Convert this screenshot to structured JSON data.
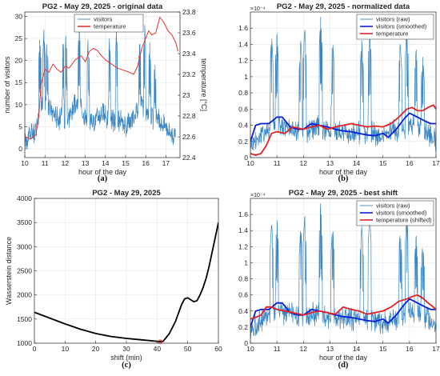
{
  "chart_data": [
    {
      "panel": "a",
      "type": "line",
      "caption": "(a)",
      "title": "PG2 - May 29, 2025 - original data",
      "xlabel": "hour of the day",
      "ylabel": "number of visitors",
      "ylabel_right": "temperature [°C]",
      "xlim": [
        10,
        17.7
      ],
      "ylim": [
        -2,
        31
      ],
      "ylim_right": [
        22.4,
        23.8
      ],
      "xticks": [
        10,
        11,
        12,
        13,
        14,
        15,
        16,
        17
      ],
      "yticks": [
        0,
        5,
        10,
        15,
        20,
        25,
        30
      ],
      "yticks_right": [
        22.4,
        22.6,
        22.8,
        23,
        23.2,
        23.4,
        23.6,
        23.8
      ],
      "ytick_labels_right": [
        "22.4",
        "22.6",
        "22.8",
        "23",
        "23.2",
        "23.4",
        "23.6",
        "23.8"
      ],
      "legend": [
        "visitors",
        "temperature"
      ],
      "legend_position": "top-center",
      "grid": true,
      "series": [
        {
          "name": "visitors",
          "color": "#3a86c4",
          "axis": "left",
          "style": "noisy",
          "x": [
            10.0,
            10.5,
            10.7,
            11.0,
            11.4,
            11.6,
            12.0,
            12.3,
            12.6,
            13.0,
            13.4,
            13.8,
            14.0,
            14.5,
            15.0,
            15.5,
            15.8,
            16.2,
            16.6,
            17.0,
            17.5
          ],
          "y": [
            2,
            4,
            8,
            10,
            8,
            7,
            6,
            8,
            10,
            7,
            6,
            8,
            7,
            6,
            5,
            8,
            10,
            7,
            6,
            5,
            2
          ],
          "peaks": [
            [
              10.75,
              26
            ],
            [
              10.95,
              27
            ],
            [
              11.1,
              25
            ],
            [
              11.9,
              25
            ],
            [
              12.05,
              27
            ],
            [
              12.7,
              29
            ],
            [
              13.15,
              26
            ],
            [
              14.2,
              25
            ],
            [
              14.55,
              27
            ],
            [
              15.7,
              25
            ],
            [
              15.95,
              28
            ],
            [
              16.2,
              24
            ],
            [
              16.45,
              20
            ]
          ]
        },
        {
          "name": "temperature",
          "color": "#e8322c",
          "axis": "right",
          "x": [
            10.0,
            10.3,
            10.55,
            10.7,
            10.8,
            11.0,
            11.2,
            11.4,
            11.6,
            11.8,
            12.0,
            12.2,
            12.5,
            12.8,
            13.0,
            13.2,
            13.4,
            13.6,
            13.8,
            14.0,
            14.3,
            14.6,
            14.9,
            15.2,
            15.4,
            15.6,
            15.8,
            16.0,
            16.15,
            16.3,
            16.5,
            16.7,
            16.9,
            17.1,
            17.3,
            17.5,
            17.6
          ],
          "y": [
            22.6,
            22.58,
            22.62,
            22.8,
            23.1,
            23.25,
            23.22,
            23.3,
            23.25,
            23.22,
            23.28,
            23.26,
            23.34,
            23.38,
            23.32,
            23.42,
            23.45,
            23.43,
            23.38,
            23.34,
            23.3,
            23.26,
            23.24,
            23.22,
            23.2,
            23.28,
            23.45,
            23.55,
            23.62,
            23.58,
            23.6,
            23.75,
            23.7,
            23.62,
            23.58,
            23.5,
            23.42
          ]
        }
      ]
    },
    {
      "panel": "b",
      "type": "line",
      "caption": "(b)",
      "title": "PG2 - May 29, 2025 - normalized data",
      "xlabel": "hour of the day",
      "ylabel": "",
      "xlim": [
        10,
        17
      ],
      "ylim": [
        0,
        1.8
      ],
      "exponent_label": "×10⁻⁴",
      "xticks": [
        10,
        11,
        12,
        13,
        14,
        15,
        16,
        17
      ],
      "yticks": [
        0,
        0.2,
        0.4,
        0.6,
        0.8,
        1,
        1.2,
        1.4,
        1.6
      ],
      "ytick_labels": [
        "0",
        "0.2",
        "0.4",
        "0.6",
        "0.8",
        "1",
        "1.2",
        "1.4",
        "1.6"
      ],
      "legend": [
        "visitors (raw)",
        "visitors (smoothed)",
        "temperature"
      ],
      "legend_position": "top-right",
      "grid": true,
      "series": [
        {
          "name": "visitors (raw)",
          "color": "#3a86c4",
          "style": "noisy",
          "x": [
            10.0,
            10.5,
            11.0,
            11.5,
            12.0,
            12.5,
            13.0,
            13.5,
            14.0,
            14.5,
            15.0,
            15.5,
            16.0,
            16.5,
            17.0
          ],
          "y": [
            0.15,
            0.3,
            0.4,
            0.35,
            0.3,
            0.35,
            0.3,
            0.3,
            0.3,
            0.28,
            0.25,
            0.3,
            0.4,
            0.35,
            0.2
          ],
          "peaks": [
            [
              10.8,
              1.5
            ],
            [
              11.0,
              1.55
            ],
            [
              11.9,
              1.45
            ],
            [
              12.05,
              1.6
            ],
            [
              12.65,
              1.75
            ],
            [
              13.1,
              1.48
            ],
            [
              14.2,
              1.45
            ],
            [
              14.5,
              1.6
            ],
            [
              15.65,
              1.42
            ],
            [
              15.9,
              1.62
            ],
            [
              16.25,
              1.35
            ],
            [
              16.5,
              1.25
            ]
          ]
        },
        {
          "name": "visitors (smoothed)",
          "color": "#0a1edc",
          "x": [
            10.0,
            10.2,
            10.4,
            10.7,
            11.0,
            11.2,
            11.5,
            11.8,
            12.0,
            12.3,
            12.6,
            12.9,
            13.2,
            13.5,
            13.8,
            14.1,
            14.4,
            14.7,
            15.0,
            15.2,
            15.5,
            15.8,
            16.0,
            16.3,
            16.6,
            16.8,
            17.0
          ],
          "y": [
            0.2,
            0.4,
            0.42,
            0.42,
            0.5,
            0.5,
            0.38,
            0.35,
            0.35,
            0.42,
            0.4,
            0.38,
            0.35,
            0.33,
            0.32,
            0.3,
            0.28,
            0.27,
            0.3,
            0.25,
            0.35,
            0.48,
            0.55,
            0.5,
            0.45,
            0.42,
            0.42
          ]
        },
        {
          "name": "temperature",
          "color": "#e52020",
          "x": [
            10.0,
            10.2,
            10.4,
            10.6,
            10.8,
            11.0,
            11.3,
            11.6,
            12.0,
            12.3,
            12.6,
            12.9,
            13.2,
            13.5,
            13.8,
            14.1,
            14.4,
            14.7,
            15.0,
            15.3,
            15.6,
            15.9,
            16.1,
            16.3,
            16.5,
            16.7,
            16.9,
            17.0
          ],
          "y": [
            0.05,
            0.03,
            0.05,
            0.15,
            0.3,
            0.32,
            0.3,
            0.38,
            0.35,
            0.38,
            0.4,
            0.35,
            0.38,
            0.4,
            0.42,
            0.4,
            0.38,
            0.39,
            0.38,
            0.42,
            0.5,
            0.6,
            0.62,
            0.58,
            0.58,
            0.62,
            0.65,
            0.6
          ]
        }
      ]
    },
    {
      "panel": "c",
      "type": "line",
      "caption": "(c)",
      "title": "PG2 - May 29, 2025",
      "xlabel": "shift (min)",
      "ylabel": "Wasserstein distance",
      "xlim": [
        0,
        60
      ],
      "ylim": [
        1000,
        4000
      ],
      "xticks": [
        0,
        10,
        20,
        30,
        40,
        50,
        60
      ],
      "yticks": [
        1000,
        1500,
        2000,
        2500,
        3000,
        3500,
        4000
      ],
      "grid": true,
      "series": [
        {
          "name": "distance",
          "color": "#000000",
          "x": [
            0,
            5,
            10,
            15,
            20,
            25,
            30,
            35,
            40,
            41,
            42,
            44,
            46,
            48,
            49,
            50,
            51,
            52,
            53,
            54,
            55,
            56,
            57,
            58,
            59,
            60
          ],
          "y": [
            1640,
            1520,
            1400,
            1290,
            1200,
            1140,
            1100,
            1070,
            1040,
            1030,
            1040,
            1200,
            1450,
            1800,
            1920,
            1940,
            1900,
            1860,
            1880,
            2000,
            2150,
            2350,
            2600,
            2900,
            3200,
            3500
          ]
        },
        {
          "name": "minimum",
          "color": "#e52020",
          "marker": true,
          "x": [
            41
          ],
          "y": [
            1030
          ]
        }
      ]
    },
    {
      "panel": "d",
      "type": "line",
      "caption": "(d)",
      "title": "PG2 - May 29, 2025 - best shift",
      "xlabel": "hour of the day",
      "ylabel": "",
      "xlim": [
        10,
        17
      ],
      "ylim": [
        0,
        1.8
      ],
      "exponent_label": "×10⁻⁴",
      "xticks": [
        10,
        11,
        12,
        13,
        14,
        15,
        16,
        17
      ],
      "yticks": [
        0,
        0.2,
        0.4,
        0.6,
        0.8,
        1,
        1.2,
        1.4,
        1.6
      ],
      "ytick_labels": [
        "0",
        "0.2",
        "0.4",
        "0.6",
        "0.8",
        "1",
        "1.2",
        "1.4",
        "1.6"
      ],
      "legend": [
        "visitors (raw)",
        "visitors (smoothed)",
        "temperature (shifted)"
      ],
      "legend_position": "top-right",
      "grid": true,
      "series": [
        {
          "name": "visitors (raw)",
          "color": "#3a86c4",
          "style": "noisy",
          "x": [
            10.0,
            10.5,
            11.0,
            11.5,
            12.0,
            12.5,
            13.0,
            13.5,
            14.0,
            14.5,
            15.0,
            15.5,
            16.0,
            16.5,
            17.0
          ],
          "y": [
            0.15,
            0.3,
            0.4,
            0.35,
            0.3,
            0.35,
            0.3,
            0.3,
            0.3,
            0.28,
            0.25,
            0.3,
            0.4,
            0.35,
            0.2
          ],
          "peaks": [
            [
              10.8,
              1.5
            ],
            [
              11.0,
              1.55
            ],
            [
              11.9,
              1.45
            ],
            [
              12.05,
              1.6
            ],
            [
              12.65,
              1.75
            ],
            [
              13.1,
              1.48
            ],
            [
              14.2,
              1.45
            ],
            [
              14.5,
              1.6
            ],
            [
              15.65,
              1.42
            ],
            [
              15.9,
              1.62
            ],
            [
              16.25,
              1.35
            ],
            [
              16.5,
              1.25
            ]
          ]
        },
        {
          "name": "visitors (smoothed)",
          "color": "#0a1edc",
          "x": [
            10.0,
            10.2,
            10.4,
            10.7,
            11.0,
            11.2,
            11.5,
            11.8,
            12.0,
            12.3,
            12.6,
            12.9,
            13.2,
            13.5,
            13.8,
            14.1,
            14.4,
            14.7,
            15.0,
            15.2,
            15.5,
            15.8,
            16.0,
            16.3,
            16.6,
            16.8,
            17.0
          ],
          "y": [
            0.2,
            0.4,
            0.42,
            0.42,
            0.5,
            0.5,
            0.38,
            0.35,
            0.35,
            0.42,
            0.4,
            0.38,
            0.35,
            0.33,
            0.32,
            0.3,
            0.28,
            0.27,
            0.3,
            0.25,
            0.35,
            0.48,
            0.55,
            0.5,
            0.45,
            0.42,
            0.42
          ]
        },
        {
          "name": "temperature (shifted)",
          "color": "#e52020",
          "x": [
            10.0,
            10.2,
            10.4,
            10.6,
            10.8,
            11.0,
            11.3,
            11.6,
            12.0,
            12.3,
            12.6,
            12.9,
            13.2,
            13.5,
            13.8,
            14.1,
            14.4,
            14.7,
            15.0,
            15.3,
            15.6,
            15.9,
            16.1,
            16.3,
            16.5,
            16.7,
            16.9,
            17.0
          ],
          "y": [
            0.3,
            0.32,
            0.35,
            0.45,
            0.45,
            0.42,
            0.4,
            0.38,
            0.35,
            0.38,
            0.4,
            0.38,
            0.36,
            0.45,
            0.42,
            0.4,
            0.36,
            0.38,
            0.4,
            0.45,
            0.52,
            0.55,
            0.58,
            0.6,
            0.56,
            0.5,
            0.45,
            0.42
          ]
        }
      ]
    }
  ]
}
